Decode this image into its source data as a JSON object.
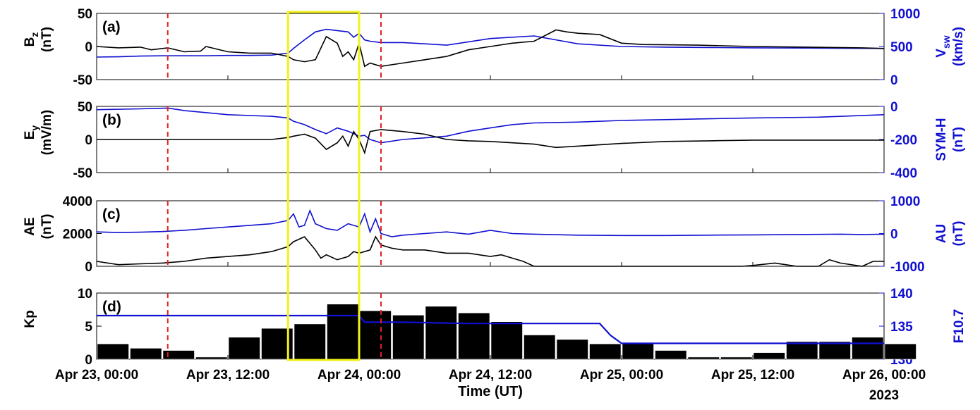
{
  "colors": {
    "left": "#000000",
    "right": "#1010d0",
    "marker": "#e02020",
    "highlight": "#f2f21a"
  },
  "x_axis": {
    "label": "Time (UT)",
    "year": "2023",
    "range_hours": [
      0,
      72
    ],
    "ticks": [
      {
        "hour": 0,
        "label": "Apr 23, 00:00"
      },
      {
        "hour": 12,
        "label": "Apr 23, 12:00"
      },
      {
        "hour": 24,
        "label": "Apr 24, 00:00"
      },
      {
        "hour": 36,
        "label": "Apr 24, 12:00"
      },
      {
        "hour": 48,
        "label": "Apr 25, 00:00"
      },
      {
        "hour": 60,
        "label": "Apr 25, 12:00"
      },
      {
        "hour": 72,
        "label": "Apr 26, 00:00"
      }
    ]
  },
  "markers": {
    "dashed_lines_hours": [
      6.5,
      26
    ],
    "highlight_hours": [
      17.5,
      24
    ]
  },
  "chart_data": [
    {
      "type": "line",
      "panel": "(a)",
      "ylabel_left": "B_z (nT)",
      "ylabel_right": "V_sw (km/s)",
      "ylim_left": [
        -50,
        50
      ],
      "yticks_left": [
        -50,
        0,
        50
      ],
      "ylim_right": [
        0,
        1000
      ],
      "yticks_right": [
        0,
        500,
        1000
      ],
      "series_left": {
        "x": [
          0,
          2,
          4,
          5,
          6.5,
          8,
          9.5,
          10,
          12,
          14,
          16,
          17.5,
          18,
          19,
          20,
          21,
          22,
          22.5,
          23,
          23.5,
          24,
          24.5,
          25,
          26,
          28,
          30,
          32,
          34,
          36,
          38,
          40,
          42,
          43,
          44,
          46,
          48,
          50,
          55,
          60,
          65,
          70,
          72
        ],
        "y": [
          0,
          -2,
          -1,
          -5,
          -2,
          -8,
          -7,
          0,
          -8,
          -10,
          -10,
          -15,
          -20,
          -23,
          -20,
          15,
          5,
          -15,
          -8,
          -20,
          5,
          -30,
          -25,
          -30,
          -25,
          -20,
          -15,
          -5,
          0,
          5,
          8,
          25,
          22,
          20,
          18,
          5,
          3,
          2,
          0,
          -1,
          -2,
          -3
        ]
      },
      "series_right": {
        "x": [
          0,
          2,
          4,
          6,
          8,
          10,
          12,
          14,
          16,
          17.5,
          18,
          19,
          20,
          21,
          22,
          23,
          23.5,
          24,
          24.5,
          25,
          26,
          28,
          30,
          32,
          36,
          40,
          42,
          44,
          48,
          52,
          56,
          60,
          66,
          72
        ],
        "y": [
          340,
          345,
          355,
          360,
          360,
          360,
          365,
          365,
          370,
          400,
          470,
          600,
          720,
          760,
          740,
          720,
          640,
          700,
          600,
          580,
          560,
          560,
          540,
          520,
          620,
          660,
          600,
          540,
          500,
          490,
          485,
          480,
          475,
          470
        ]
      }
    },
    {
      "type": "line",
      "panel": "(b)",
      "ylabel_left": "E_y (mV/m)",
      "ylabel_right": "SYM-H (nT)",
      "ylim_left": [
        -50,
        50
      ],
      "yticks_left": [
        -50,
        0,
        50
      ],
      "ylim_right": [
        -400,
        0
      ],
      "yticks_right": [
        -400,
        -200,
        0
      ],
      "series_left": {
        "x": [
          0,
          4,
          8,
          12,
          16,
          17.5,
          18,
          19,
          20,
          21,
          22,
          22.5,
          23,
          23.5,
          24,
          24.5,
          25,
          26,
          28,
          30,
          32,
          34,
          36,
          38,
          40,
          42,
          44,
          48,
          52,
          56,
          60,
          66,
          72
        ],
        "y": [
          0,
          0,
          0,
          0,
          0,
          3,
          5,
          8,
          2,
          -15,
          -5,
          5,
          -10,
          12,
          0,
          -20,
          12,
          15,
          12,
          8,
          0,
          -2,
          -3,
          -5,
          -7,
          -12,
          -10,
          -6,
          -3,
          -2,
          -1,
          -1,
          -1
        ]
      },
      "series_right": {
        "x": [
          0,
          4,
          6.5,
          8,
          12,
          16,
          17.5,
          18,
          19,
          20,
          21,
          22,
          23,
          24,
          24.5,
          25,
          26,
          28,
          30,
          32,
          34,
          36,
          38,
          40,
          44,
          48,
          52,
          56,
          60,
          66,
          72
        ],
        "y": [
          -20,
          -15,
          -10,
          -25,
          -50,
          -60,
          -70,
          -90,
          -110,
          -140,
          -165,
          -130,
          -150,
          -180,
          -175,
          -200,
          -220,
          -200,
          -190,
          -180,
          -150,
          -130,
          -110,
          -100,
          -95,
          -85,
          -80,
          -75,
          -70,
          -65,
          -50
        ]
      }
    },
    {
      "type": "line",
      "panel": "(c)",
      "ylabel_left": "AE (nT)",
      "ylabel_right": "AU (nT)",
      "ylim_left": [
        0,
        4000
      ],
      "yticks_left": [
        0,
        2000,
        4000
      ],
      "ylim_right": [
        -1000,
        1000
      ],
      "yticks_right": [
        -1000,
        0,
        1000
      ],
      "series_left": {
        "x": [
          0,
          2,
          4,
          6,
          8,
          10,
          12,
          14,
          16,
          17.5,
          18,
          19,
          19.5,
          20,
          20.5,
          21,
          22,
          23,
          23.5,
          24,
          25,
          25.5,
          26,
          27,
          28,
          30,
          32,
          34,
          36,
          37,
          38,
          39,
          40,
          42,
          44,
          48,
          52,
          56,
          59,
          60,
          62,
          63,
          64,
          66,
          67,
          68,
          70,
          71,
          72
        ],
        "y": [
          300,
          100,
          150,
          200,
          300,
          500,
          600,
          700,
          900,
          1200,
          1500,
          1800,
          1400,
          1000,
          500,
          700,
          400,
          600,
          900,
          800,
          1000,
          1800,
          1300,
          1100,
          1000,
          1000,
          800,
          800,
          600,
          700,
          500,
          300,
          0,
          0,
          0,
          0,
          0,
          0,
          0,
          50,
          200,
          100,
          0,
          0,
          400,
          200,
          0,
          300,
          300
        ]
      },
      "series_right": {
        "x": [
          0,
          2,
          4,
          6,
          8,
          10,
          12,
          14,
          16,
          17.5,
          18,
          18.5,
          19,
          19.5,
          20,
          21,
          22,
          23,
          24,
          24.5,
          25,
          25.5,
          26,
          27,
          28,
          30,
          32,
          34,
          36,
          38,
          40,
          44,
          48,
          52,
          56,
          60,
          64,
          68,
          70,
          72
        ],
        "y": [
          50,
          30,
          40,
          60,
          100,
          150,
          200,
          250,
          300,
          400,
          600,
          200,
          250,
          700,
          300,
          150,
          100,
          300,
          200,
          600,
          50,
          450,
          0,
          -100,
          -50,
          0,
          50,
          -20,
          100,
          0,
          -20,
          -50,
          -60,
          -60,
          -50,
          -40,
          -30,
          -20,
          -30,
          -20
        ]
      }
    },
    {
      "type": "bar",
      "panel": "(d)",
      "ylabel_left": "Kp",
      "ylabel_right": "F10.7",
      "ylim_left": [
        0,
        10
      ],
      "yticks_left": [
        0,
        5,
        10
      ],
      "ylim_right": [
        130,
        140
      ],
      "yticks_right": [
        130,
        135,
        140
      ],
      "bar_interval_hours": 3,
      "kp_values": [
        2.33,
        1.67,
        1.33,
        0.33,
        3.33,
        4.67,
        5.33,
        8.33,
        7.33,
        6.67,
        8.0,
        7.0,
        5.67,
        3.67,
        3.0,
        2.33,
        2.33,
        1.33,
        0.33,
        0.33,
        1.0,
        2.67,
        2.67,
        3.33,
        2.33
      ],
      "f107_series": {
        "x": [
          0,
          24,
          24.5,
          28,
          34,
          46,
          47,
          48,
          49,
          50,
          60,
          66,
          72
        ],
        "y": [
          136.6,
          136.6,
          135.6,
          135.6,
          135.4,
          135.4,
          133.6,
          132.4,
          132.4,
          132.4,
          132.4,
          132.4,
          132.4
        ]
      }
    }
  ]
}
